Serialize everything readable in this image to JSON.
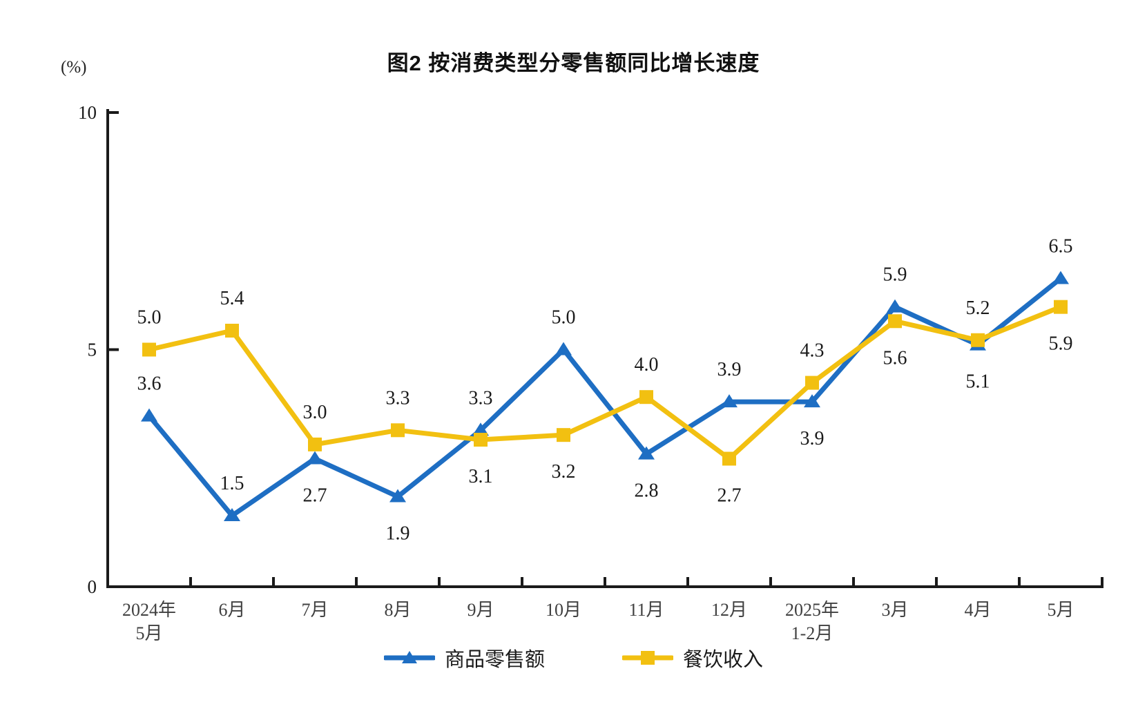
{
  "page": {
    "title": "图2  按消费类型分零售额同比增长速度",
    "unit_label": "(%)"
  },
  "chart_data": {
    "type": "line",
    "title": "图2  按消费类型分零售额同比增长速度",
    "ylabel": "(%)",
    "xlabel": "",
    "ylim": [
      0,
      10
    ],
    "yticks": [
      0,
      5,
      10
    ],
    "grid": false,
    "legend_position": "bottom",
    "categories": [
      [
        "2024年",
        "5月"
      ],
      [
        "6月"
      ],
      [
        "7月"
      ],
      [
        "8月"
      ],
      [
        "9月"
      ],
      [
        "10月"
      ],
      [
        "11月"
      ],
      [
        "12月"
      ],
      [
        "2025年",
        "1-2月"
      ],
      [
        "3月"
      ],
      [
        "4月"
      ],
      [
        "5月"
      ]
    ],
    "series": [
      {
        "name": "商品零售额",
        "color": "#1E6EC3",
        "marker": "triangle",
        "values": [
          3.6,
          1.5,
          2.7,
          1.9,
          3.3,
          5.0,
          2.8,
          3.9,
          3.9,
          5.9,
          5.1,
          6.5
        ],
        "label_positions": [
          "above",
          "above",
          "below",
          "below",
          "above",
          "above",
          "below",
          "above",
          "below",
          "above",
          "below",
          "above"
        ]
      },
      {
        "name": "餐饮收入",
        "color": "#F2C011",
        "marker": "square",
        "values": [
          5.0,
          5.4,
          3.0,
          3.3,
          3.1,
          3.2,
          4.0,
          2.7,
          4.3,
          5.6,
          5.2,
          5.9
        ],
        "label_positions": [
          "above",
          "above",
          "above",
          "above",
          "below",
          "below",
          "above",
          "below",
          "above",
          "below",
          "above",
          "below"
        ]
      }
    ]
  }
}
